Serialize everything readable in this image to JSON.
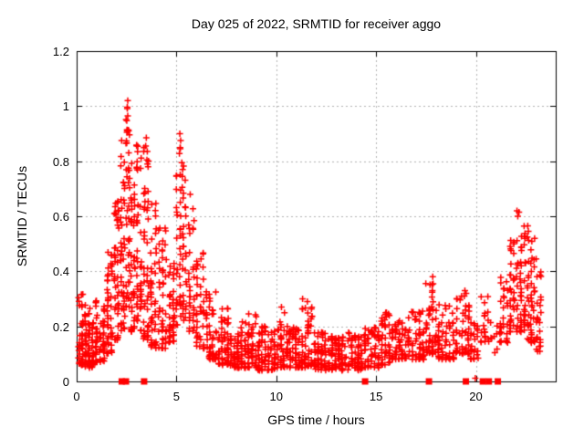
{
  "page": {
    "background": "#ffffff"
  },
  "chart_data": {
    "type": "scatter",
    "title": "Day 025 of 2022, SRMTID for receiver aggo",
    "xlabel": "GPS time / hours",
    "ylabel": "SRMTID / TECUs",
    "xlim": [
      0,
      24
    ],
    "ylim": [
      0,
      1.2
    ],
    "xticks": [
      0,
      5,
      10,
      15,
      20
    ],
    "xtick_labels": [
      "0",
      "5",
      "10",
      "15",
      "20"
    ],
    "yticks": [
      0,
      0.2,
      0.4,
      0.6,
      0.8,
      1,
      1.2
    ],
    "ytick_labels": [
      "0",
      "0.2",
      "0.4",
      "0.6",
      "0.8",
      "1",
      "1.2"
    ],
    "grid": true,
    "legend_position": "none",
    "marker_color": "#ff0000",
    "grid_color": "#b3b3b3",
    "axis_color": "#000000",
    "seed": 20220125,
    "series": [
      {
        "name": "SRMTID",
        "marker": "plus",
        "points": [
          [
            2.56,
            1.02
          ],
          [
            2.56,
            0.965
          ],
          [
            2.52,
            0.905
          ],
          [
            2.47,
            0.865
          ],
          [
            2.61,
            0.83
          ],
          [
            3.49,
            0.885
          ],
          [
            3.46,
            0.855
          ],
          [
            3.54,
            0.835
          ],
          [
            3.52,
            0.805
          ],
          [
            3.58,
            0.78
          ],
          [
            5.17,
            0.9
          ],
          [
            5.21,
            0.875
          ],
          [
            5.19,
            0.845
          ],
          [
            5.27,
            0.795
          ],
          [
            5.31,
            0.77
          ],
          [
            1.93,
            0.635
          ],
          [
            1.97,
            0.605
          ],
          [
            2.02,
            0.585
          ],
          [
            10.26,
            0.27
          ],
          [
            11.32,
            0.3
          ],
          [
            11.56,
            0.29
          ],
          [
            15.52,
            0.25
          ],
          [
            8.62,
            0.245
          ],
          [
            17.84,
            0.38
          ],
          [
            17.86,
            0.355
          ],
          [
            17.82,
            0.33
          ],
          [
            19.45,
            0.33
          ],
          [
            19.42,
            0.31
          ],
          [
            22.06,
            0.62
          ],
          [
            22.1,
            0.6
          ],
          [
            22.16,
            0.615
          ],
          [
            21.9,
            0.5
          ],
          [
            22.6,
            0.565
          ],
          [
            22.63,
            0.545
          ],
          [
            22.58,
            0.525
          ],
          [
            23.02,
            0.445
          ],
          [
            19.97,
            0.012
          ]
        ],
        "bands": [
          [
            0.05,
            0.35,
            40,
            0.06,
            0.35,
            2.2
          ],
          [
            0.35,
            0.9,
            70,
            0.05,
            0.28,
            1.8
          ],
          [
            0.9,
            1.45,
            55,
            0.07,
            0.3,
            1.8
          ],
          [
            1.45,
            1.85,
            45,
            0.1,
            0.52,
            1.6
          ],
          [
            1.85,
            2.15,
            40,
            0.15,
            0.66,
            1.4
          ],
          [
            2.15,
            2.45,
            45,
            0.18,
            0.88,
            1.3
          ],
          [
            2.45,
            2.68,
            42,
            0.25,
            1.0,
            1.2
          ],
          [
            2.68,
            2.95,
            38,
            0.18,
            0.8,
            1.4
          ],
          [
            2.95,
            3.3,
            45,
            0.18,
            0.86,
            1.3
          ],
          [
            3.3,
            3.65,
            45,
            0.15,
            0.86,
            1.4
          ],
          [
            3.65,
            4.05,
            45,
            0.12,
            0.66,
            1.5
          ],
          [
            4.05,
            4.55,
            45,
            0.12,
            0.56,
            1.6
          ],
          [
            4.55,
            4.95,
            40,
            0.14,
            0.5,
            1.5
          ],
          [
            4.95,
            5.25,
            35,
            0.2,
            0.88,
            1.3
          ],
          [
            5.25,
            5.55,
            30,
            0.22,
            0.8,
            1.4
          ],
          [
            5.55,
            5.95,
            32,
            0.18,
            0.68,
            1.5
          ],
          [
            5.95,
            6.45,
            40,
            0.12,
            0.48,
            1.7
          ],
          [
            6.45,
            7.05,
            50,
            0.08,
            0.34,
            1.8
          ],
          [
            7.05,
            7.65,
            55,
            0.06,
            0.28,
            1.8
          ],
          [
            7.65,
            8.35,
            60,
            0.05,
            0.22,
            1.7
          ],
          [
            8.35,
            9.05,
            60,
            0.05,
            0.25,
            1.8
          ],
          [
            9.05,
            10.0,
            80,
            0.04,
            0.2,
            1.7
          ],
          [
            10.0,
            10.45,
            35,
            0.05,
            0.27,
            1.9
          ],
          [
            10.45,
            11.2,
            65,
            0.05,
            0.2,
            1.7
          ],
          [
            11.2,
            11.85,
            50,
            0.05,
            0.29,
            1.9
          ],
          [
            11.85,
            12.55,
            55,
            0.04,
            0.18,
            1.6
          ],
          [
            12.55,
            13.55,
            75,
            0.04,
            0.17,
            1.6
          ],
          [
            13.55,
            14.35,
            60,
            0.04,
            0.18,
            1.6
          ],
          [
            14.35,
            15.2,
            60,
            0.05,
            0.2,
            1.6
          ],
          [
            15.2,
            15.75,
            40,
            0.06,
            0.25,
            1.8
          ],
          [
            15.75,
            16.55,
            55,
            0.08,
            0.22,
            1.6
          ],
          [
            16.55,
            17.45,
            60,
            0.08,
            0.26,
            1.6
          ],
          [
            17.45,
            18.05,
            45,
            0.1,
            0.37,
            1.8
          ],
          [
            18.05,
            18.95,
            55,
            0.08,
            0.28,
            1.7
          ],
          [
            18.95,
            19.7,
            50,
            0.1,
            0.33,
            1.7
          ],
          [
            19.7,
            20.15,
            25,
            0.08,
            0.22,
            1.6
          ],
          [
            20.15,
            20.7,
            20,
            0.14,
            0.33,
            1.4
          ],
          [
            20.7,
            21.15,
            8,
            0.1,
            0.22,
            1.5
          ],
          [
            21.15,
            21.65,
            30,
            0.14,
            0.38,
            1.4
          ],
          [
            21.65,
            22.15,
            45,
            0.18,
            0.52,
            1.3
          ],
          [
            22.15,
            22.55,
            40,
            0.18,
            0.58,
            1.4
          ],
          [
            22.55,
            23.0,
            45,
            0.14,
            0.52,
            1.5
          ],
          [
            23.0,
            23.3,
            25,
            0.1,
            0.45,
            1.5
          ]
        ]
      },
      {
        "name": "zero flags",
        "marker": "filled-square",
        "points": [
          [
            2.26,
            0
          ],
          [
            2.47,
            0
          ],
          [
            3.38,
            0
          ],
          [
            14.45,
            0
          ],
          [
            17.65,
            0
          ],
          [
            19.5,
            0
          ],
          [
            20.35,
            0
          ],
          [
            20.65,
            0
          ],
          [
            21.1,
            0
          ]
        ]
      }
    ]
  }
}
